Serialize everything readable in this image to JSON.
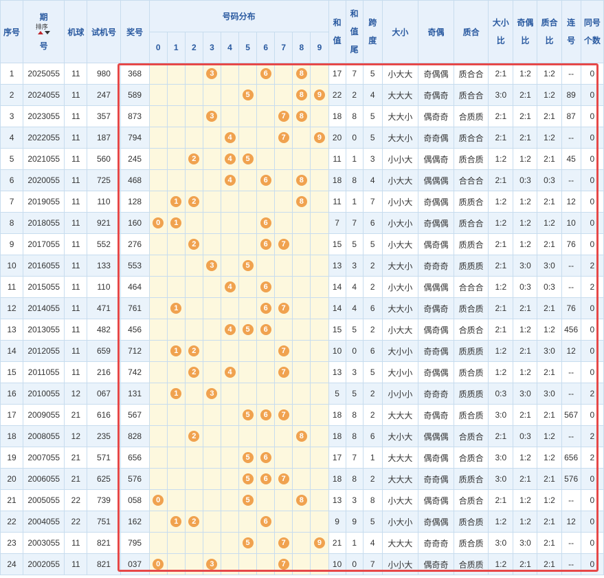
{
  "headers": {
    "seq": "序号",
    "period_top": "期",
    "period_bottom": "号",
    "sort_label": "排序",
    "machine": "机球",
    "trial": "试机号",
    "prize": "奖号",
    "distribution": "号码分布",
    "digits": [
      "0",
      "1",
      "2",
      "3",
      "4",
      "5",
      "6",
      "7",
      "8",
      "9"
    ],
    "sum_top": "和",
    "sum_bottom": "值",
    "sumtail_top": "和",
    "sumtail_mid": "值",
    "sumtail_bottom": "尾",
    "span_top": "跨",
    "span_bottom": "度",
    "size": "大小",
    "oddeven": "奇偶",
    "primecomp": "质合",
    "size_ratio_top": "大小",
    "size_ratio_bottom": "比",
    "oe_ratio_top": "奇偶",
    "oe_ratio_bottom": "比",
    "pc_ratio_top": "质合",
    "pc_ratio_bottom": "比",
    "consec_top": "连",
    "consec_bottom": "号",
    "same_top": "同号",
    "same_bottom": "个数"
  },
  "rows": [
    {
      "seq": "1",
      "period": "2025055",
      "machine": "11",
      "trial": "980",
      "prize": "368",
      "balls": [
        "3",
        "6",
        "8"
      ],
      "sum": "17",
      "tail": "7",
      "span": "5",
      "size": "小大大",
      "oe": "奇偶偶",
      "pc": "质合合",
      "sr": "2:1",
      "oer": "1:2",
      "pcr": "1:2",
      "consec": "--",
      "same": "0"
    },
    {
      "seq": "2",
      "period": "2024055",
      "machine": "11",
      "trial": "247",
      "prize": "589",
      "balls": [
        "5",
        "8",
        "9"
      ],
      "sum": "22",
      "tail": "2",
      "span": "4",
      "size": "大大大",
      "oe": "奇偶奇",
      "pc": "质合合",
      "sr": "3:0",
      "oer": "2:1",
      "pcr": "1:2",
      "consec": "89",
      "same": "0"
    },
    {
      "seq": "3",
      "period": "2023055",
      "machine": "11",
      "trial": "357",
      "prize": "873",
      "balls": [
        "3",
        "7",
        "8"
      ],
      "sum": "18",
      "tail": "8",
      "span": "5",
      "size": "大大小",
      "oe": "偶奇奇",
      "pc": "合质质",
      "sr": "2:1",
      "oer": "2:1",
      "pcr": "2:1",
      "consec": "87",
      "same": "0"
    },
    {
      "seq": "4",
      "period": "2022055",
      "machine": "11",
      "trial": "187",
      "prize": "794",
      "balls": [
        "4",
        "7",
        "9"
      ],
      "sum": "20",
      "tail": "0",
      "span": "5",
      "size": "大大小",
      "oe": "奇奇偶",
      "pc": "质合合",
      "sr": "2:1",
      "oer": "2:1",
      "pcr": "1:2",
      "consec": "--",
      "same": "0"
    },
    {
      "seq": "5",
      "period": "2021055",
      "machine": "11",
      "trial": "560",
      "prize": "245",
      "balls": [
        "2",
        "4",
        "5"
      ],
      "sum": "11",
      "tail": "1",
      "span": "3",
      "size": "小小大",
      "oe": "偶偶奇",
      "pc": "质合质",
      "sr": "1:2",
      "oer": "1:2",
      "pcr": "2:1",
      "consec": "45",
      "same": "0"
    },
    {
      "seq": "6",
      "period": "2020055",
      "machine": "11",
      "trial": "725",
      "prize": "468",
      "balls": [
        "4",
        "6",
        "8"
      ],
      "sum": "18",
      "tail": "8",
      "span": "4",
      "size": "小大大",
      "oe": "偶偶偶",
      "pc": "合合合",
      "sr": "2:1",
      "oer": "0:3",
      "pcr": "0:3",
      "consec": "--",
      "same": "0"
    },
    {
      "seq": "7",
      "period": "2019055",
      "machine": "11",
      "trial": "110",
      "prize": "128",
      "balls": [
        "1",
        "2",
        "8"
      ],
      "sum": "11",
      "tail": "1",
      "span": "7",
      "size": "小小大",
      "oe": "奇偶偶",
      "pc": "质质合",
      "sr": "1:2",
      "oer": "1:2",
      "pcr": "2:1",
      "consec": "12",
      "same": "0"
    },
    {
      "seq": "8",
      "period": "2018055",
      "machine": "11",
      "trial": "921",
      "prize": "160",
      "balls": [
        "0",
        "1",
        "6"
      ],
      "sum": "7",
      "tail": "7",
      "span": "6",
      "size": "小大小",
      "oe": "奇偶偶",
      "pc": "质合合",
      "sr": "1:2",
      "oer": "1:2",
      "pcr": "1:2",
      "consec": "10",
      "same": "0"
    },
    {
      "seq": "9",
      "period": "2017055",
      "machine": "11",
      "trial": "552",
      "prize": "276",
      "balls": [
        "2",
        "6",
        "7"
      ],
      "sum": "15",
      "tail": "5",
      "span": "5",
      "size": "小大大",
      "oe": "偶奇偶",
      "pc": "质质合",
      "sr": "2:1",
      "oer": "1:2",
      "pcr": "2:1",
      "consec": "76",
      "same": "0"
    },
    {
      "seq": "10",
      "period": "2016055",
      "machine": "11",
      "trial": "133",
      "prize": "553",
      "balls": [
        "3",
        "5"
      ],
      "sum": "13",
      "tail": "3",
      "span": "2",
      "size": "大大小",
      "oe": "奇奇奇",
      "pc": "质质质",
      "sr": "2:1",
      "oer": "3:0",
      "pcr": "3:0",
      "consec": "--",
      "same": "2"
    },
    {
      "seq": "11",
      "period": "2015055",
      "machine": "11",
      "trial": "110",
      "prize": "464",
      "balls": [
        "4",
        "6"
      ],
      "sum": "14",
      "tail": "4",
      "span": "2",
      "size": "小大小",
      "oe": "偶偶偶",
      "pc": "合合合",
      "sr": "1:2",
      "oer": "0:3",
      "pcr": "0:3",
      "consec": "--",
      "same": "2"
    },
    {
      "seq": "12",
      "period": "2014055",
      "machine": "11",
      "trial": "471",
      "prize": "761",
      "balls": [
        "1",
        "6",
        "7"
      ],
      "sum": "14",
      "tail": "4",
      "span": "6",
      "size": "大大小",
      "oe": "奇偶奇",
      "pc": "质合质",
      "sr": "2:1",
      "oer": "2:1",
      "pcr": "2:1",
      "consec": "76",
      "same": "0"
    },
    {
      "seq": "13",
      "period": "2013055",
      "machine": "11",
      "trial": "482",
      "prize": "456",
      "balls": [
        "4",
        "5",
        "6"
      ],
      "sum": "15",
      "tail": "5",
      "span": "2",
      "size": "小大大",
      "oe": "偶奇偶",
      "pc": "合质合",
      "sr": "2:1",
      "oer": "1:2",
      "pcr": "1:2",
      "consec": "456",
      "same": "0"
    },
    {
      "seq": "14",
      "period": "2012055",
      "machine": "11",
      "trial": "659",
      "prize": "712",
      "balls": [
        "1",
        "2",
        "7"
      ],
      "sum": "10",
      "tail": "0",
      "span": "6",
      "size": "大小小",
      "oe": "奇奇偶",
      "pc": "质质质",
      "sr": "1:2",
      "oer": "2:1",
      "pcr": "3:0",
      "consec": "12",
      "same": "0"
    },
    {
      "seq": "15",
      "period": "2011055",
      "machine": "11",
      "trial": "216",
      "prize": "742",
      "balls": [
        "2",
        "4",
        "7"
      ],
      "sum": "13",
      "tail": "3",
      "span": "5",
      "size": "大小小",
      "oe": "奇偶偶",
      "pc": "质合质",
      "sr": "1:2",
      "oer": "1:2",
      "pcr": "2:1",
      "consec": "--",
      "same": "0"
    },
    {
      "seq": "16",
      "period": "2010055",
      "machine": "12",
      "trial": "067",
      "prize": "131",
      "balls": [
        "1",
        "3"
      ],
      "sum": "5",
      "tail": "5",
      "span": "2",
      "size": "小小小",
      "oe": "奇奇奇",
      "pc": "质质质",
      "sr": "0:3",
      "oer": "3:0",
      "pcr": "3:0",
      "consec": "--",
      "same": "2"
    },
    {
      "seq": "17",
      "period": "2009055",
      "machine": "21",
      "trial": "616",
      "prize": "567",
      "balls": [
        "5",
        "6",
        "7"
      ],
      "sum": "18",
      "tail": "8",
      "span": "2",
      "size": "大大大",
      "oe": "奇偶奇",
      "pc": "质合质",
      "sr": "3:0",
      "oer": "2:1",
      "pcr": "2:1",
      "consec": "567",
      "same": "0"
    },
    {
      "seq": "18",
      "period": "2008055",
      "machine": "12",
      "trial": "235",
      "prize": "828",
      "balls": [
        "2",
        "8"
      ],
      "sum": "18",
      "tail": "8",
      "span": "6",
      "size": "大小大",
      "oe": "偶偶偶",
      "pc": "合质合",
      "sr": "2:1",
      "oer": "0:3",
      "pcr": "1:2",
      "consec": "--",
      "same": "2"
    },
    {
      "seq": "19",
      "period": "2007055",
      "machine": "21",
      "trial": "571",
      "prize": "656",
      "balls": [
        "5",
        "6"
      ],
      "sum": "17",
      "tail": "7",
      "span": "1",
      "size": "大大大",
      "oe": "偶奇偶",
      "pc": "合质合",
      "sr": "3:0",
      "oer": "1:2",
      "pcr": "1:2",
      "consec": "656",
      "same": "2"
    },
    {
      "seq": "20",
      "period": "2006055",
      "machine": "21",
      "trial": "625",
      "prize": "576",
      "balls": [
        "5",
        "6",
        "7"
      ],
      "sum": "18",
      "tail": "8",
      "span": "2",
      "size": "大大大",
      "oe": "奇奇偶",
      "pc": "质质合",
      "sr": "3:0",
      "oer": "2:1",
      "pcr": "2:1",
      "consec": "576",
      "same": "0"
    },
    {
      "seq": "21",
      "period": "2005055",
      "machine": "22",
      "trial": "739",
      "prize": "058",
      "balls": [
        "0",
        "5",
        "8"
      ],
      "sum": "13",
      "tail": "3",
      "span": "8",
      "size": "小大大",
      "oe": "偶奇偶",
      "pc": "合质合",
      "sr": "2:1",
      "oer": "1:2",
      "pcr": "1:2",
      "consec": "--",
      "same": "0"
    },
    {
      "seq": "22",
      "period": "2004055",
      "machine": "22",
      "trial": "751",
      "prize": "162",
      "balls": [
        "1",
        "2",
        "6"
      ],
      "sum": "9",
      "tail": "9",
      "span": "5",
      "size": "小大小",
      "oe": "奇偶偶",
      "pc": "质合质",
      "sr": "1:2",
      "oer": "1:2",
      "pcr": "2:1",
      "consec": "12",
      "same": "0"
    },
    {
      "seq": "23",
      "period": "2003055",
      "machine": "11",
      "trial": "821",
      "prize": "795",
      "balls": [
        "5",
        "7",
        "9"
      ],
      "sum": "21",
      "tail": "1",
      "span": "4",
      "size": "大大大",
      "oe": "奇奇奇",
      "pc": "质合质",
      "sr": "3:0",
      "oer": "3:0",
      "pcr": "2:1",
      "consec": "--",
      "same": "0"
    },
    {
      "seq": "24",
      "period": "2002055",
      "machine": "11",
      "trial": "821",
      "prize": "037",
      "balls": [
        "0",
        "3",
        "7"
      ],
      "sum": "10",
      "tail": "0",
      "span": "7",
      "size": "小小大",
      "oe": "偶奇奇",
      "pc": "合质质",
      "sr": "1:2",
      "oer": "2:1",
      "pcr": "2:1",
      "consec": "--",
      "same": "0"
    }
  ]
}
